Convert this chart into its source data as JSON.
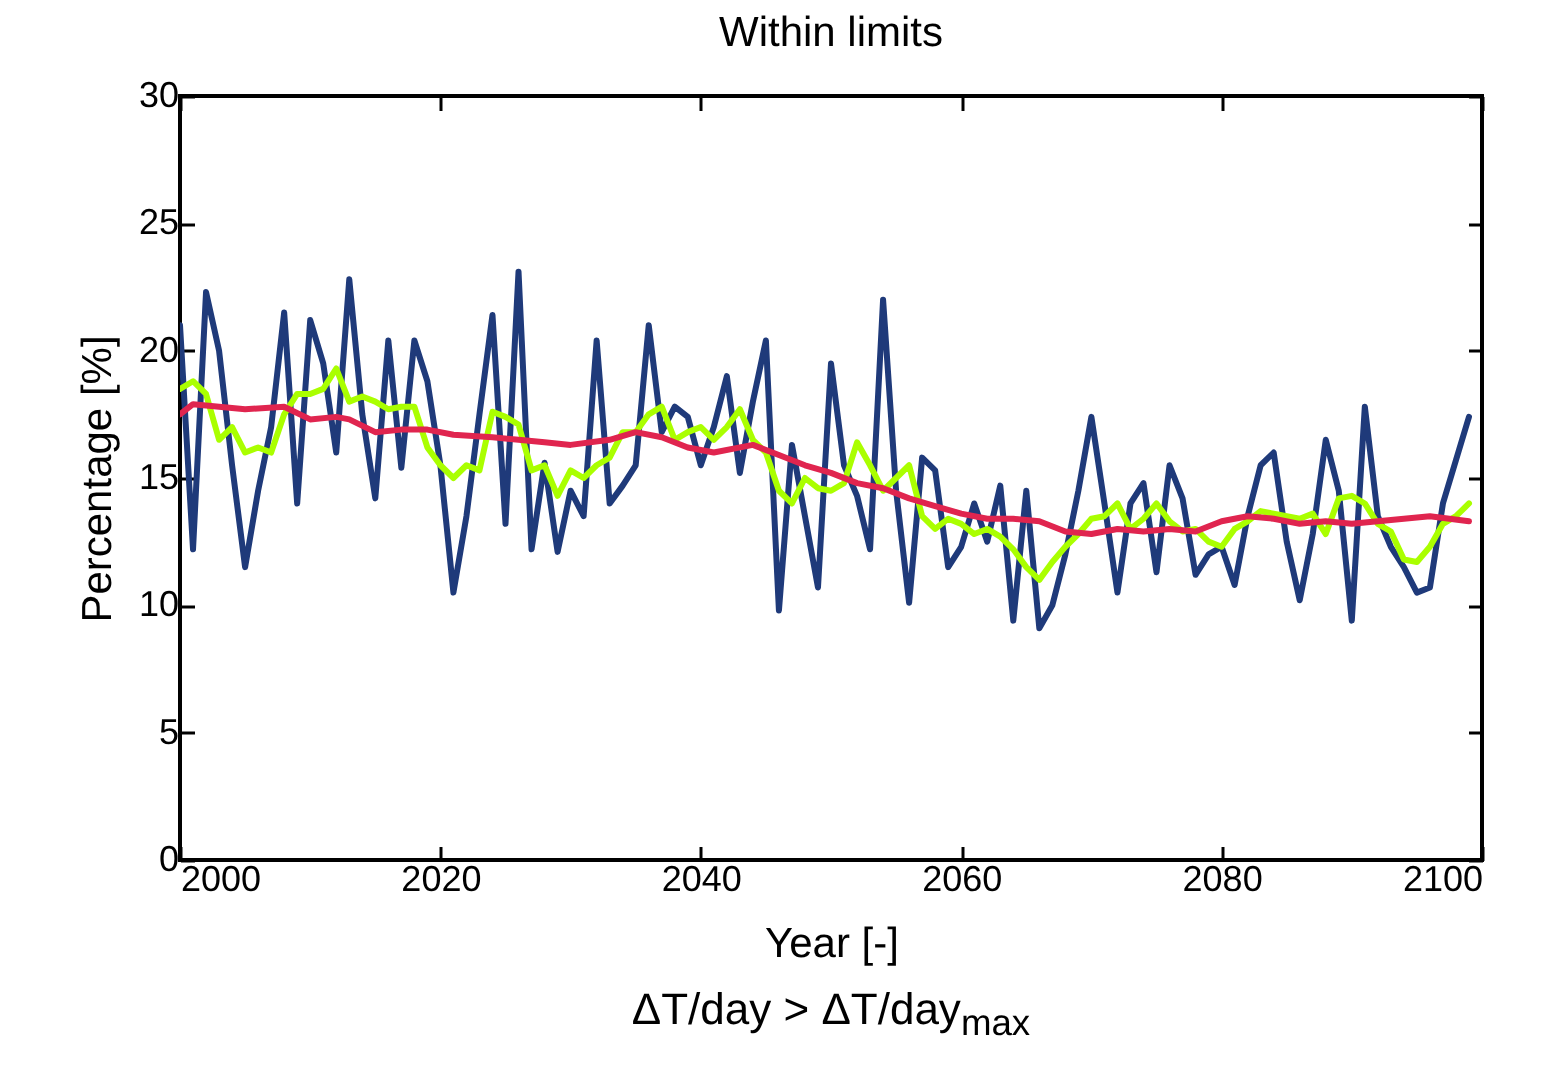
{
  "chart_data": {
    "type": "line",
    "title": "Within limits",
    "xlabel": "Year [-]",
    "ylabel": "Percentage [%]",
    "annotations": [
      "ΔT/day > ΔT/day$_{max}$"
    ],
    "x": [
      2000,
      2001,
      2002,
      2003,
      2004,
      2005,
      2006,
      2007,
      2008,
      2009,
      2010,
      2011,
      2012,
      2013,
      2014,
      2015,
      2016,
      2017,
      2018,
      2019,
      2020,
      2021,
      2022,
      2023,
      2024,
      2025,
      2026,
      2027,
      2028,
      2029,
      2030,
      2031,
      2032,
      2033,
      2034,
      2035,
      2036,
      2037,
      2038,
      2039,
      2040,
      2041,
      2042,
      2043,
      2044,
      2045,
      2046,
      2047,
      2048,
      2049,
      2050,
      2051,
      2052,
      2053,
      2054,
      2055,
      2056,
      2057,
      2058,
      2059,
      2060,
      2061,
      2062,
      2063,
      2064,
      2065,
      2066,
      2067,
      2068,
      2069,
      2070,
      2071,
      2072,
      2073,
      2074,
      2075,
      2076,
      2077,
      2078,
      2079,
      2080,
      2081,
      2082,
      2083,
      2084,
      2085,
      2086,
      2087,
      2088,
      2089,
      2090,
      2091,
      2092,
      2093,
      2094,
      2095,
      2096,
      2097,
      2098,
      2099
    ],
    "series": [
      {
        "color": "#1f3a7a",
        "values": [
          21,
          12.2,
          22.3,
          20,
          15.5,
          11.5,
          14.5,
          17,
          21.5,
          14,
          21.2,
          19.5,
          16,
          22.8,
          17.5,
          14.2,
          20.4,
          15.4,
          20.4,
          18.8,
          15.5,
          10.5,
          13.5,
          17.5,
          21.4,
          13.2,
          23.1,
          12.2,
          15.6,
          12.1,
          14.5,
          13.5,
          20.4,
          14,
          14.7,
          15.5,
          21,
          16.8,
          17.8,
          17.4,
          15.5,
          17,
          19,
          15.2,
          18,
          20.4,
          9.8,
          16.3,
          13.5,
          10.7,
          19.5,
          15.5,
          14.3,
          12.2,
          22,
          14.5,
          10.1,
          15.8,
          15.3,
          11.5,
          12.3,
          14,
          12.5,
          14.7,
          9.4,
          14.5,
          9.1,
          10,
          12,
          14.5,
          17.4,
          14,
          10.5,
          14,
          14.8,
          11.3,
          15.5,
          14.2,
          11.2,
          12,
          12.3,
          10.8,
          13.5,
          15.5,
          16,
          12.5,
          10.2,
          12.8,
          16.5,
          14.5,
          9.4,
          17.8,
          13.5,
          12.3,
          11.5,
          10.5,
          10.7,
          14,
          15.7,
          17.4
        ]
      },
      {
        "color": "#aaff00",
        "values": [
          18.5,
          18.8,
          18.3,
          16.5,
          17,
          16,
          16.2,
          16,
          17.5,
          18.3,
          18.3,
          18.5,
          19.3,
          18,
          18.2,
          18,
          17.7,
          17.8,
          17.8,
          16.2,
          15.5,
          15,
          15.5,
          15.3,
          17.6,
          17.4,
          17.1,
          15.3,
          15.5,
          14.3,
          15.3,
          15,
          15.5,
          15.8,
          16.8,
          16.8,
          17.5,
          17.8,
          16.5,
          16.8,
          17,
          16.5,
          17,
          17.7,
          16.5,
          16,
          14.5,
          14,
          15,
          14.6,
          14.5,
          14.8,
          16.4,
          15.5,
          14.5,
          15,
          15.5,
          13.5,
          13,
          13.4,
          13.2,
          12.8,
          13,
          12.7,
          12.2,
          11.5,
          11,
          11.7,
          12.3,
          12.8,
          13.4,
          13.5,
          14,
          13,
          13.4,
          14,
          13.3,
          12.9,
          13,
          12.5,
          12.3,
          13,
          13.3,
          13.7,
          13.6,
          13.5,
          13.4,
          13.6,
          12.8,
          14.2,
          14.3,
          14,
          13.2,
          12.9,
          11.8,
          11.7,
          12.3,
          13.2,
          13.5,
          14
        ]
      },
      {
        "color": "#e0254f",
        "x": [
          2000,
          2001,
          2003,
          2005,
          2008,
          2010,
          2012,
          2013,
          2015,
          2017,
          2019,
          2021,
          2024,
          2026,
          2028,
          2030,
          2033,
          2035,
          2037,
          2039,
          2041,
          2044,
          2046,
          2048,
          2050,
          2052,
          2054,
          2056,
          2058,
          2060,
          2062,
          2064,
          2066,
          2068,
          2070,
          2072,
          2074,
          2076,
          2078,
          2080,
          2082,
          2084,
          2086,
          2088,
          2090,
          2092,
          2094,
          2096,
          2099
        ],
        "values": [
          17.5,
          17.9,
          17.8,
          17.7,
          17.8,
          17.3,
          17.4,
          17.3,
          16.8,
          16.9,
          16.9,
          16.7,
          16.6,
          16.5,
          16.4,
          16.3,
          16.5,
          16.8,
          16.6,
          16.2,
          16,
          16.3,
          15.9,
          15.5,
          15.2,
          14.8,
          14.6,
          14.2,
          13.9,
          13.6,
          13.4,
          13.4,
          13.3,
          12.9,
          12.8,
          13,
          12.9,
          13,
          12.9,
          13.3,
          13.5,
          13.4,
          13.2,
          13.3,
          13.2,
          13.3,
          13.4,
          13.5,
          13.3
        ]
      }
    ],
    "xlim": [
      2000,
      2100
    ],
    "xticks": [
      2000,
      2020,
      2040,
      2060,
      2080,
      2100
    ],
    "ylim": [
      0,
      30
    ],
    "yticks": [
      0,
      5,
      10,
      15,
      20,
      25,
      30
    ]
  }
}
